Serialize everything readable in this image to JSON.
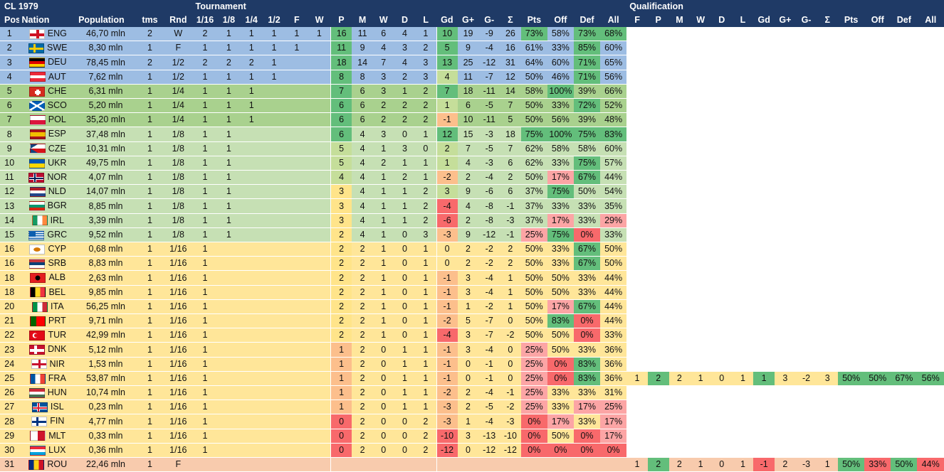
{
  "title": "CL 1979",
  "group_headers": {
    "tournament": "Tournament",
    "qualification": "Qualification"
  },
  "columns": [
    "Pos",
    "Nation",
    "Population",
    "tms",
    "Rnd",
    "1/16",
    "1/8",
    "1/4",
    "1/2",
    "F",
    "W",
    "P",
    "M",
    "W",
    "D",
    "L",
    "Gd",
    "G+",
    "G-",
    "Σ",
    "Pts",
    "Off",
    "Def",
    "All",
    "F",
    "P",
    "M",
    "W",
    "D",
    "L",
    "Gd",
    "G+",
    "G-",
    "Σ",
    "Pts",
    "Off",
    "Def",
    "All"
  ],
  "rows": [
    {
      "pos": "1",
      "code": "ENG",
      "flag": "eng",
      "pop": "46,70 mln",
      "tms": "2",
      "rnd": "W",
      "r": [
        "2",
        "1",
        "1",
        "1",
        "1",
        "1"
      ],
      "P": "16",
      "M": "11",
      "W": "6",
      "D": "4",
      "L": "1",
      "Gd": "10",
      "Gp": "19",
      "Gm": "-9",
      "S": "26",
      "Pts": "73%",
      "Off": "58%",
      "Def": "73%",
      "All": "68%"
    },
    {
      "pos": "2",
      "code": "SWE",
      "flag": "swe",
      "pop": "8,30 mln",
      "tms": "1",
      "rnd": "F",
      "r": [
        "1",
        "1",
        "1",
        "1",
        "1",
        ""
      ],
      "P": "11",
      "M": "9",
      "W": "4",
      "D": "3",
      "L": "2",
      "Gd": "5",
      "Gp": "9",
      "Gm": "-4",
      "S": "16",
      "Pts": "61%",
      "Off": "33%",
      "Def": "85%",
      "All": "60%"
    },
    {
      "pos": "3",
      "code": "DEU",
      "flag": "deu",
      "pop": "78,45 mln",
      "tms": "2",
      "rnd": "1/2",
      "r": [
        "2",
        "2",
        "2",
        "1",
        "",
        ""
      ],
      "P": "18",
      "M": "14",
      "W": "7",
      "D": "4",
      "L": "3",
      "Gd": "13",
      "Gp": "25",
      "Gm": "-12",
      "S": "31",
      "Pts": "64%",
      "Off": "60%",
      "Def": "71%",
      "All": "65%"
    },
    {
      "pos": "4",
      "code": "AUT",
      "flag": "aut",
      "pop": "7,62 mln",
      "tms": "1",
      "rnd": "1/2",
      "r": [
        "1",
        "1",
        "1",
        "1",
        "",
        ""
      ],
      "P": "8",
      "M": "8",
      "W": "3",
      "D": "2",
      "L": "3",
      "Gd": "4",
      "Gp": "11",
      "Gm": "-7",
      "S": "12",
      "Pts": "50%",
      "Off": "46%",
      "Def": "71%",
      "All": "56%"
    },
    {
      "pos": "5",
      "code": "CHE",
      "flag": "che",
      "pop": "6,31 mln",
      "tms": "1",
      "rnd": "1/4",
      "r": [
        "1",
        "1",
        "1",
        "",
        "",
        ""
      ],
      "P": "7",
      "M": "6",
      "W": "3",
      "D": "1",
      "L": "2",
      "Gd": "7",
      "Gp": "18",
      "Gm": "-11",
      "S": "14",
      "Pts": "58%",
      "Off": "100%",
      "Def": "39%",
      "All": "66%"
    },
    {
      "pos": "6",
      "code": "SCO",
      "flag": "sco",
      "pop": "5,20 mln",
      "tms": "1",
      "rnd": "1/4",
      "r": [
        "1",
        "1",
        "1",
        "",
        "",
        ""
      ],
      "P": "6",
      "M": "6",
      "W": "2",
      "D": "2",
      "L": "2",
      "Gd": "1",
      "Gp": "6",
      "Gm": "-5",
      "S": "7",
      "Pts": "50%",
      "Off": "33%",
      "Def": "72%",
      "All": "52%"
    },
    {
      "pos": "7",
      "code": "POL",
      "flag": "pol",
      "pop": "35,20 mln",
      "tms": "1",
      "rnd": "1/4",
      "r": [
        "1",
        "1",
        "1",
        "",
        "",
        ""
      ],
      "P": "6",
      "M": "6",
      "W": "2",
      "D": "2",
      "L": "2",
      "Gd": "-1",
      "Gp": "10",
      "Gm": "-11",
      "S": "5",
      "Pts": "50%",
      "Off": "56%",
      "Def": "39%",
      "All": "48%"
    },
    {
      "pos": "8",
      "code": "ESP",
      "flag": "esp",
      "pop": "37,48 mln",
      "tms": "1",
      "rnd": "1/8",
      "r": [
        "1",
        "1",
        "",
        "",
        "",
        ""
      ],
      "P": "6",
      "M": "4",
      "W": "3",
      "D": "0",
      "L": "1",
      "Gd": "12",
      "Gp": "15",
      "Gm": "-3",
      "S": "18",
      "Pts": "75%",
      "Off": "100%",
      "Def": "75%",
      "All": "83%"
    },
    {
      "pos": "9",
      "code": "CZE",
      "flag": "cze",
      "pop": "10,31 mln",
      "tms": "1",
      "rnd": "1/8",
      "r": [
        "1",
        "1",
        "",
        "",
        "",
        ""
      ],
      "P": "5",
      "M": "4",
      "W": "1",
      "D": "3",
      "L": "0",
      "Gd": "2",
      "Gp": "7",
      "Gm": "-5",
      "S": "7",
      "Pts": "62%",
      "Off": "58%",
      "Def": "58%",
      "All": "60%"
    },
    {
      "pos": "10",
      "code": "UKR",
      "flag": "ukr",
      "pop": "49,75 mln",
      "tms": "1",
      "rnd": "1/8",
      "r": [
        "1",
        "1",
        "",
        "",
        "",
        ""
      ],
      "P": "5",
      "M": "4",
      "W": "2",
      "D": "1",
      "L": "1",
      "Gd": "1",
      "Gp": "4",
      "Gm": "-3",
      "S": "6",
      "Pts": "62%",
      "Off": "33%",
      "Def": "75%",
      "All": "57%"
    },
    {
      "pos": "11",
      "code": "NOR",
      "flag": "nor",
      "pop": "4,07 mln",
      "tms": "1",
      "rnd": "1/8",
      "r": [
        "1",
        "1",
        "",
        "",
        "",
        ""
      ],
      "P": "4",
      "M": "4",
      "W": "1",
      "D": "2",
      "L": "1",
      "Gd": "-2",
      "Gp": "2",
      "Gm": "-4",
      "S": "2",
      "Pts": "50%",
      "Off": "17%",
      "Def": "67%",
      "All": "44%"
    },
    {
      "pos": "12",
      "code": "NLD",
      "flag": "nld",
      "pop": "14,07 mln",
      "tms": "1",
      "rnd": "1/8",
      "r": [
        "1",
        "1",
        "",
        "",
        "",
        ""
      ],
      "P": "3",
      "M": "4",
      "W": "1",
      "D": "1",
      "L": "2",
      "Gd": "3",
      "Gp": "9",
      "Gm": "-6",
      "S": "6",
      "Pts": "37%",
      "Off": "75%",
      "Def": "50%",
      "All": "54%"
    },
    {
      "pos": "13",
      "code": "BGR",
      "flag": "bgr",
      "pop": "8,85 mln",
      "tms": "1",
      "rnd": "1/8",
      "r": [
        "1",
        "1",
        "",
        "",
        "",
        ""
      ],
      "P": "3",
      "M": "4",
      "W": "1",
      "D": "1",
      "L": "2",
      "Gd": "-4",
      "Gp": "4",
      "Gm": "-8",
      "S": "-1",
      "Pts": "37%",
      "Off": "33%",
      "Def": "33%",
      "All": "35%"
    },
    {
      "pos": "14",
      "code": "IRL",
      "flag": "irl",
      "pop": "3,39 mln",
      "tms": "1",
      "rnd": "1/8",
      "r": [
        "1",
        "1",
        "",
        "",
        "",
        ""
      ],
      "P": "3",
      "M": "4",
      "W": "1",
      "D": "1",
      "L": "2",
      "Gd": "-6",
      "Gp": "2",
      "Gm": "-8",
      "S": "-3",
      "Pts": "37%",
      "Off": "17%",
      "Def": "33%",
      "All": "29%"
    },
    {
      "pos": "15",
      "code": "GRC",
      "flag": "grc",
      "pop": "9,52 mln",
      "tms": "1",
      "rnd": "1/8",
      "r": [
        "1",
        "1",
        "",
        "",
        "",
        ""
      ],
      "P": "2",
      "M": "4",
      "W": "1",
      "D": "0",
      "L": "3",
      "Gd": "-3",
      "Gp": "9",
      "Gm": "-12",
      "S": "-1",
      "Pts": "25%",
      "Off": "75%",
      "Def": "0%",
      "All": "33%"
    },
    {
      "pos": "16",
      "code": "CYP",
      "flag": "cyp",
      "pop": "0,68 mln",
      "tms": "1",
      "rnd": "1/16",
      "r": [
        "1",
        "",
        "",
        "",
        "",
        ""
      ],
      "P": "2",
      "M": "2",
      "W": "1",
      "D": "0",
      "L": "1",
      "Gd": "0",
      "Gp": "2",
      "Gm": "-2",
      "S": "2",
      "Pts": "50%",
      "Off": "33%",
      "Def": "67%",
      "All": "50%"
    },
    {
      "pos": "16",
      "code": "SRB",
      "flag": "srb",
      "pop": "8,83 mln",
      "tms": "1",
      "rnd": "1/16",
      "r": [
        "1",
        "",
        "",
        "",
        "",
        ""
      ],
      "P": "2",
      "M": "2",
      "W": "1",
      "D": "0",
      "L": "1",
      "Gd": "0",
      "Gp": "2",
      "Gm": "-2",
      "S": "2",
      "Pts": "50%",
      "Off": "33%",
      "Def": "67%",
      "All": "50%"
    },
    {
      "pos": "18",
      "code": "ALB",
      "flag": "alb",
      "pop": "2,63 mln",
      "tms": "1",
      "rnd": "1/16",
      "r": [
        "1",
        "",
        "",
        "",
        "",
        ""
      ],
      "P": "2",
      "M": "2",
      "W": "1",
      "D": "0",
      "L": "1",
      "Gd": "-1",
      "Gp": "3",
      "Gm": "-4",
      "S": "1",
      "Pts": "50%",
      "Off": "50%",
      "Def": "33%",
      "All": "44%"
    },
    {
      "pos": "18",
      "code": "BEL",
      "flag": "bel",
      "pop": "9,85 mln",
      "tms": "1",
      "rnd": "1/16",
      "r": [
        "1",
        "",
        "",
        "",
        "",
        ""
      ],
      "P": "2",
      "M": "2",
      "W": "1",
      "D": "0",
      "L": "1",
      "Gd": "-1",
      "Gp": "3",
      "Gm": "-4",
      "S": "1",
      "Pts": "50%",
      "Off": "50%",
      "Def": "33%",
      "All": "44%"
    },
    {
      "pos": "20",
      "code": "ITA",
      "flag": "ita",
      "pop": "56,25 mln",
      "tms": "1",
      "rnd": "1/16",
      "r": [
        "1",
        "",
        "",
        "",
        "",
        ""
      ],
      "P": "2",
      "M": "2",
      "W": "1",
      "D": "0",
      "L": "1",
      "Gd": "-1",
      "Gp": "1",
      "Gm": "-2",
      "S": "1",
      "Pts": "50%",
      "Off": "17%",
      "Def": "67%",
      "All": "44%"
    },
    {
      "pos": "21",
      "code": "PRT",
      "flag": "prt",
      "pop": "9,71 mln",
      "tms": "1",
      "rnd": "1/16",
      "r": [
        "1",
        "",
        "",
        "",
        "",
        ""
      ],
      "P": "2",
      "M": "2",
      "W": "1",
      "D": "0",
      "L": "1",
      "Gd": "-2",
      "Gp": "5",
      "Gm": "-7",
      "S": "0",
      "Pts": "50%",
      "Off": "83%",
      "Def": "0%",
      "All": "44%"
    },
    {
      "pos": "22",
      "code": "TUR",
      "flag": "tur",
      "pop": "42,99 mln",
      "tms": "1",
      "rnd": "1/16",
      "r": [
        "1",
        "",
        "",
        "",
        "",
        ""
      ],
      "P": "2",
      "M": "2",
      "W": "1",
      "D": "0",
      "L": "1",
      "Gd": "-4",
      "Gp": "3",
      "Gm": "-7",
      "S": "-2",
      "Pts": "50%",
      "Off": "50%",
      "Def": "0%",
      "All": "33%"
    },
    {
      "pos": "23",
      "code": "DNK",
      "flag": "dnk",
      "pop": "5,12 mln",
      "tms": "1",
      "rnd": "1/16",
      "r": [
        "1",
        "",
        "",
        "",
        "",
        ""
      ],
      "P": "1",
      "M": "2",
      "W": "0",
      "D": "1",
      "L": "1",
      "Gd": "-1",
      "Gp": "3",
      "Gm": "-4",
      "S": "0",
      "Pts": "25%",
      "Off": "50%",
      "Def": "33%",
      "All": "36%"
    },
    {
      "pos": "24",
      "code": "NIR",
      "flag": "nir",
      "pop": "1,53 mln",
      "tms": "1",
      "rnd": "1/16",
      "r": [
        "1",
        "",
        "",
        "",
        "",
        ""
      ],
      "P": "1",
      "M": "2",
      "W": "0",
      "D": "1",
      "L": "1",
      "Gd": "-1",
      "Gp": "0",
      "Gm": "-1",
      "S": "0",
      "Pts": "25%",
      "Off": "0%",
      "Def": "83%",
      "All": "36%"
    },
    {
      "pos": "25",
      "code": "FRA",
      "flag": "fra",
      "pop": "53,87 mln",
      "tms": "1",
      "rnd": "1/16",
      "r": [
        "1",
        "",
        "",
        "",
        "",
        ""
      ],
      "P": "1",
      "M": "2",
      "W": "0",
      "D": "1",
      "L": "1",
      "Gd": "-1",
      "Gp": "0",
      "Gm": "-1",
      "S": "0",
      "Pts": "25%",
      "Off": "0%",
      "Def": "83%",
      "All": "36%",
      "q": {
        "F": "1",
        "P": "2",
        "M": "2",
        "W": "1",
        "D": "0",
        "L": "1",
        "Gd": "1",
        "Gp": "3",
        "Gm": "-2",
        "S": "3",
        "Pts": "50%",
        "Off": "50%",
        "Def": "67%",
        "All": "56%"
      }
    },
    {
      "pos": "26",
      "code": "HUN",
      "flag": "hun",
      "pop": "10,74 mln",
      "tms": "1",
      "rnd": "1/16",
      "r": [
        "1",
        "",
        "",
        "",
        "",
        ""
      ],
      "P": "1",
      "M": "2",
      "W": "0",
      "D": "1",
      "L": "1",
      "Gd": "-2",
      "Gp": "2",
      "Gm": "-4",
      "S": "-1",
      "Pts": "25%",
      "Off": "33%",
      "Def": "33%",
      "All": "31%"
    },
    {
      "pos": "27",
      "code": "ISL",
      "flag": "isl",
      "pop": "0,23 mln",
      "tms": "1",
      "rnd": "1/16",
      "r": [
        "1",
        "",
        "",
        "",
        "",
        ""
      ],
      "P": "1",
      "M": "2",
      "W": "0",
      "D": "1",
      "L": "1",
      "Gd": "-3",
      "Gp": "2",
      "Gm": "-5",
      "S": "-2",
      "Pts": "25%",
      "Off": "33%",
      "Def": "17%",
      "All": "25%"
    },
    {
      "pos": "28",
      "code": "FIN",
      "flag": "fin",
      "pop": "4,77 mln",
      "tms": "1",
      "rnd": "1/16",
      "r": [
        "1",
        "",
        "",
        "",
        "",
        ""
      ],
      "P": "0",
      "M": "2",
      "W": "0",
      "D": "0",
      "L": "2",
      "Gd": "-3",
      "Gp": "1",
      "Gm": "-4",
      "S": "-3",
      "Pts": "0%",
      "Off": "17%",
      "Def": "33%",
      "All": "17%"
    },
    {
      "pos": "29",
      "code": "MLT",
      "flag": "mlt",
      "pop": "0,33 mln",
      "tms": "1",
      "rnd": "1/16",
      "r": [
        "1",
        "",
        "",
        "",
        "",
        ""
      ],
      "P": "0",
      "M": "2",
      "W": "0",
      "D": "0",
      "L": "2",
      "Gd": "-10",
      "Gp": "3",
      "Gm": "-13",
      "S": "-10",
      "Pts": "0%",
      "Off": "50%",
      "Def": "0%",
      "All": "17%"
    },
    {
      "pos": "30",
      "code": "LUX",
      "flag": "lux",
      "pop": "0,36 mln",
      "tms": "1",
      "rnd": "1/16",
      "r": [
        "1",
        "",
        "",
        "",
        "",
        ""
      ],
      "P": "0",
      "M": "2",
      "W": "0",
      "D": "0",
      "L": "2",
      "Gd": "-12",
      "Gp": "0",
      "Gm": "-12",
      "S": "-12",
      "Pts": "0%",
      "Off": "0%",
      "Def": "0%",
      "All": "0%"
    },
    {
      "pos": "31",
      "code": "ROU",
      "flag": "rou",
      "pop": "22,46 mln",
      "tms": "1",
      "rnd": "F",
      "r": [
        "",
        "",
        "",
        "",
        "",
        ""
      ],
      "P": "",
      "M": "",
      "W": "",
      "D": "",
      "L": "",
      "Gd": "",
      "Gp": "",
      "Gm": "",
      "S": "",
      "Pts": "",
      "Off": "",
      "Def": "",
      "All": "",
      "q": {
        "F": "1",
        "P": "2",
        "M": "2",
        "W": "1",
        "D": "0",
        "L": "1",
        "Gd": "-1",
        "Gp": "2",
        "Gm": "-3",
        "S": "1",
        "Pts": "50%",
        "Off": "33%",
        "Def": "50%",
        "All": "44%"
      }
    }
  ],
  "colors": {
    "header": "#1f3a66",
    "band_blue": "#9dbde3",
    "band_green": "#a9d18e",
    "band_lightgreen": "#c6e0b4",
    "band_yellow": "#ffe699",
    "band_orange": "#f8cbad",
    "cell_green": "#63be7b",
    "cell_red": "#f8696b"
  }
}
